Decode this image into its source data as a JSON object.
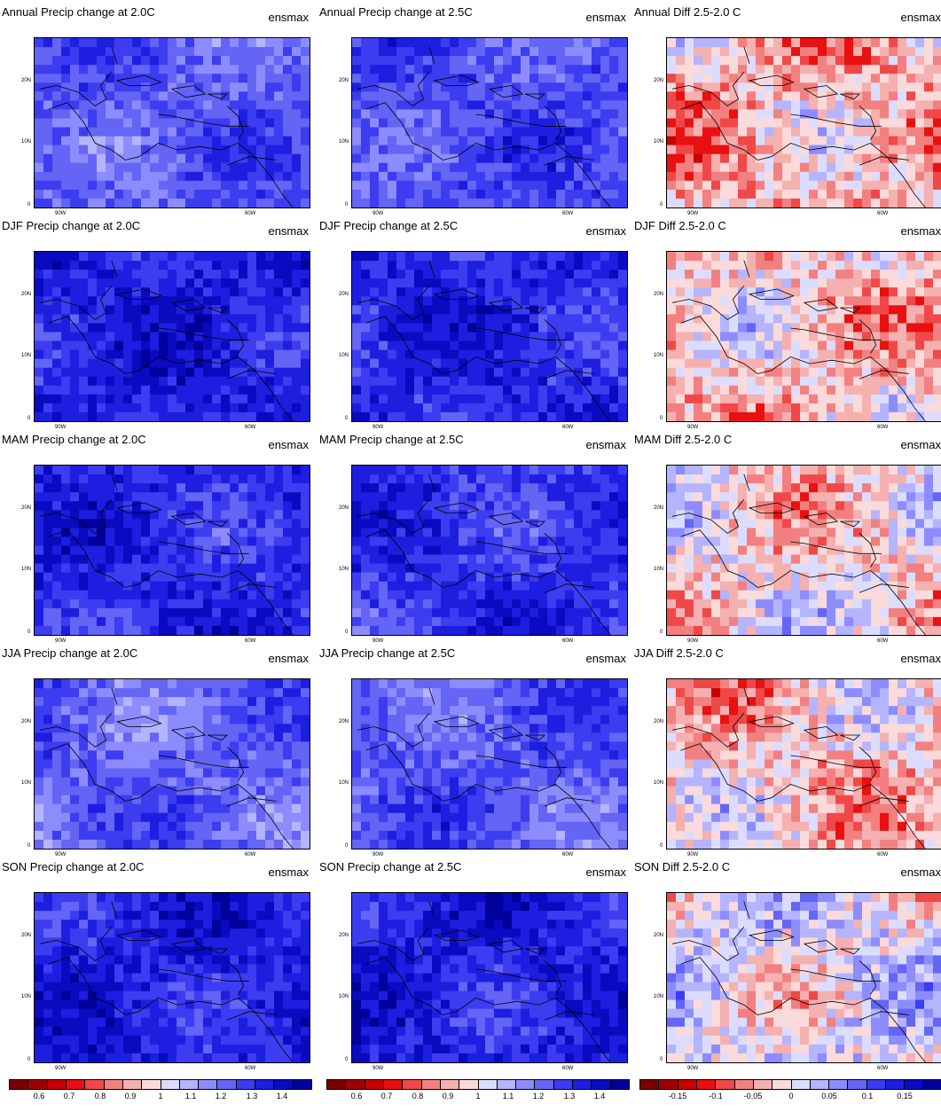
{
  "panels": [
    {
      "title": "Annual Precip change at 2.0C",
      "tag": "ensmax",
      "kind": "change",
      "bias": 0.55
    },
    {
      "title": "Annual Precip change at 2.5C",
      "tag": "ensmax",
      "kind": "change",
      "bias": 0.6
    },
    {
      "title": "Annual Diff 2.5-2.0 C",
      "tag": "ensmax",
      "kind": "diff",
      "bias": 0.35
    },
    {
      "title": "DJF Precip change at 2.0C",
      "tag": "ensmax",
      "kind": "change",
      "bias": 0.85
    },
    {
      "title": "DJF Precip change at 2.5C",
      "tag": "ensmax",
      "kind": "change",
      "bias": 0.8
    },
    {
      "title": "DJF Diff 2.5-2.0 C",
      "tag": "ensmax",
      "kind": "diff",
      "bias": 0.4
    },
    {
      "title": "MAM Precip change at 2.0C",
      "tag": "ensmax",
      "kind": "change",
      "bias": 0.8
    },
    {
      "title": "MAM Precip change at 2.5C",
      "tag": "ensmax",
      "kind": "change",
      "bias": 0.75
    },
    {
      "title": "MAM Diff 2.5-2.0 C",
      "tag": "ensmax",
      "kind": "diff",
      "bias": 0.45
    },
    {
      "title": "JJA Precip change at 2.0C",
      "tag": "ensmax",
      "kind": "change",
      "bias": 0.5
    },
    {
      "title": "JJA Precip change at 2.5C",
      "tag": "ensmax",
      "kind": "change",
      "bias": 0.55
    },
    {
      "title": "JJA Diff 2.5-2.0 C",
      "tag": "ensmax",
      "kind": "diff",
      "bias": 0.4
    },
    {
      "title": "SON Precip change at 2.0C",
      "tag": "ensmax",
      "kind": "change",
      "bias": 0.85
    },
    {
      "title": "SON Precip change at 2.5C",
      "tag": "ensmax",
      "kind": "change",
      "bias": 0.85
    },
    {
      "title": "SON Diff 2.5-2.0 C",
      "tag": "ensmax",
      "kind": "diff",
      "bias": 0.55
    }
  ],
  "lat_labels": [
    "20N",
    "10N",
    "0"
  ],
  "lon_labels": [
    "90W",
    "60W"
  ],
  "colorbars": [
    {
      "labels": [
        "0.6",
        "0.7",
        "0.8",
        "0.9",
        "1",
        "1.1",
        "1.2",
        "1.3",
        "1.4"
      ]
    },
    {
      "labels": [
        "0.6",
        "0.7",
        "0.8",
        "0.9",
        "1",
        "1.1",
        "1.2",
        "1.3",
        "1.4"
      ]
    },
    {
      "labels": [
        "-0.15",
        "-0.1",
        "-0.05",
        "0",
        "0.05",
        "0.1",
        "0.15"
      ]
    }
  ],
  "colors": {
    "scale": [
      "#7a0000",
      "#a00000",
      "#c80000",
      "#e81010",
      "#f04848",
      "#f28080",
      "#f5b0b0",
      "#fadada",
      "#dcdcff",
      "#b4b4ff",
      "#8c8cff",
      "#6464f5",
      "#3c3cf0",
      "#1e1ee0",
      "#0a0ac0",
      "#00009a"
    ],
    "land_line": "#000000"
  }
}
